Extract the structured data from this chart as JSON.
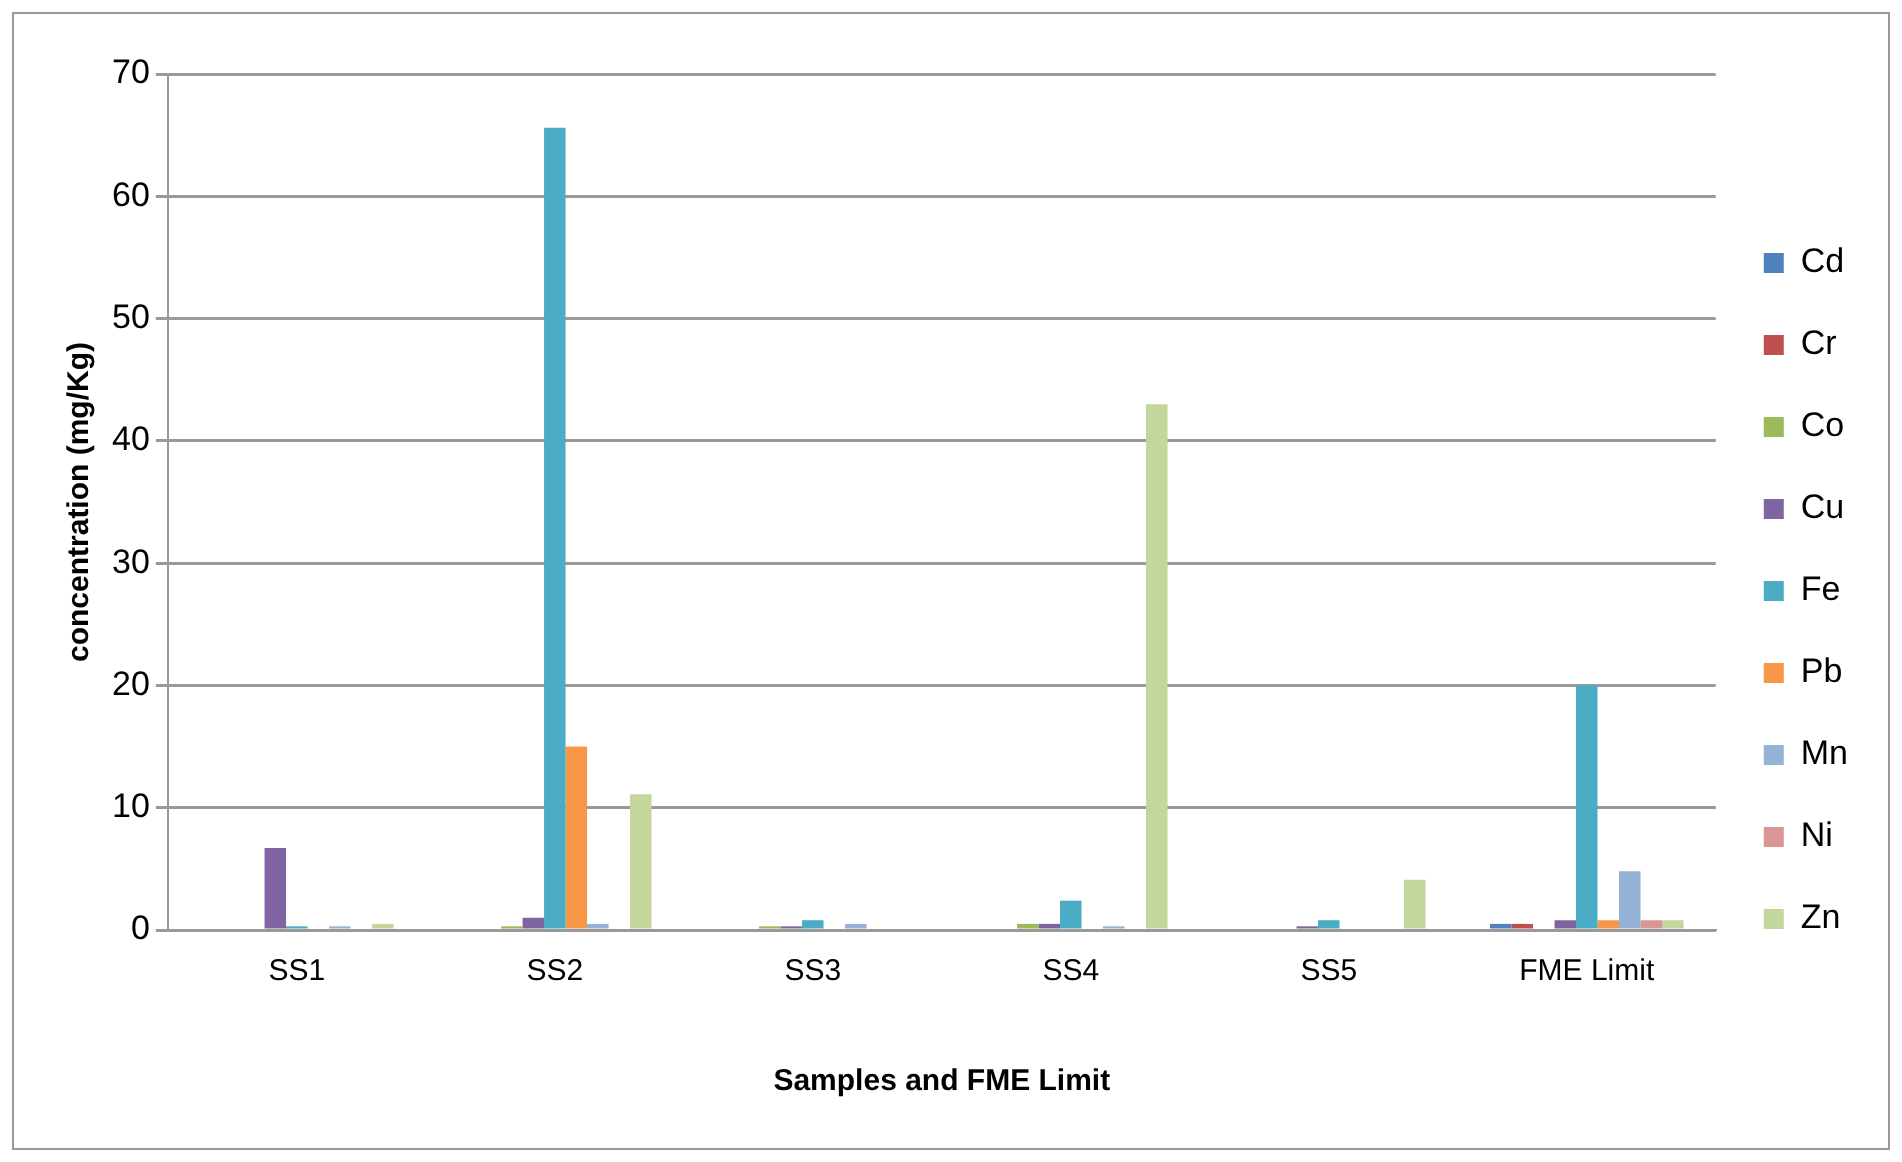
{
  "chart_data": {
    "type": "bar",
    "xlabel": "Samples and FME Limit",
    "ylabel": "concentration (mg/Kg)",
    "categories": [
      "SS1",
      "SS2",
      "SS3",
      "SS4",
      "SS5",
      "FME Limit"
    ],
    "series": [
      {
        "name": "Cd",
        "color": "#4f81bd",
        "values": [
          0,
          0,
          0,
          0,
          0,
          0.5
        ]
      },
      {
        "name": "Cr",
        "color": "#c0504d",
        "values": [
          0,
          0,
          0,
          0,
          0,
          0.5
        ]
      },
      {
        "name": "Co",
        "color": "#9bbb59",
        "values": [
          0,
          0.3,
          0.3,
          0.5,
          0,
          0
        ]
      },
      {
        "name": "Cu",
        "color": "#8064a2",
        "values": [
          6.7,
          1.0,
          0.3,
          0.5,
          0.3,
          0.8
        ]
      },
      {
        "name": "Fe",
        "color": "#4bacc6",
        "values": [
          0.3,
          65.6,
          0.8,
          2.4,
          0.8,
          20
        ]
      },
      {
        "name": "Pb",
        "color": "#f79646",
        "values": [
          0,
          15,
          0,
          0,
          0,
          0.8
        ]
      },
      {
        "name": "Mn",
        "color": "#95b3d7",
        "values": [
          0.3,
          0.5,
          0.5,
          0.3,
          0,
          4.8
        ]
      },
      {
        "name": "Ni",
        "color": "#da9694",
        "values": [
          0,
          0,
          0,
          0,
          0,
          0.8
        ]
      },
      {
        "name": "Zn",
        "color": "#c3d69b",
        "values": [
          0.5,
          11.1,
          0,
          43,
          4.1,
          0.8
        ]
      }
    ],
    "ylim": [
      0,
      70
    ],
    "yticks": [
      0,
      10,
      20,
      30,
      40,
      50,
      60,
      70
    ],
    "grid": "y",
    "legend": "right"
  }
}
